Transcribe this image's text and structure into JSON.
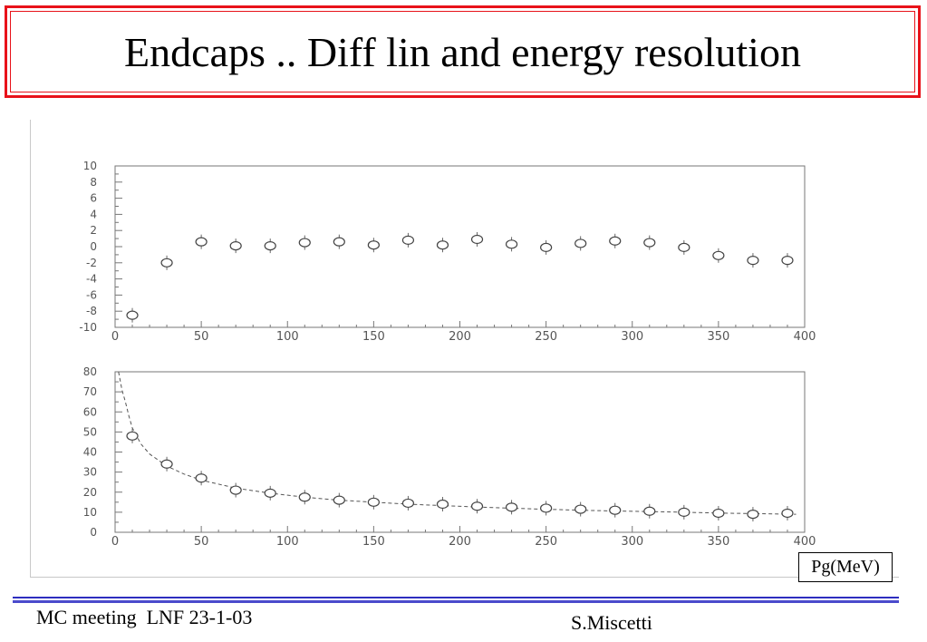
{
  "slide": {
    "title": "Endcaps .. Diff lin and energy resolution",
    "unit_label": "Pg(MeV)",
    "footer_left": "MC meeting  LNF 23-1-03",
    "footer_right": "S.Miscetti",
    "accent_color": "#e8121a",
    "rule_color": "#2d2dbf"
  },
  "chart_data": [
    {
      "type": "scatter",
      "title": "",
      "xlabel": "",
      "ylabel": "",
      "xlim": [
        0,
        400
      ],
      "ylim": [
        -10,
        10
      ],
      "xticks": [
        0,
        50,
        100,
        150,
        200,
        250,
        300,
        350,
        400
      ],
      "xtick_labels": [
        "0",
        "50",
        "100",
        "150",
        "200",
        "250",
        "300",
        "350",
        "400"
      ],
      "yticks": [
        -10,
        -8,
        -6,
        -4,
        -2,
        0,
        2,
        4,
        6,
        8,
        10
      ],
      "ytick_labels": [
        "-10",
        "-8",
        "-6",
        "-4",
        "-2",
        "0",
        "2",
        "4",
        "6",
        "8",
        "10"
      ],
      "grid": false,
      "series": [
        {
          "marker": "open-circle",
          "x": [
            10,
            30,
            50,
            70,
            90,
            110,
            130,
            150,
            170,
            190,
            210,
            230,
            250,
            270,
            290,
            310,
            330,
            350,
            370,
            390
          ],
          "y": [
            -8.5,
            -2.0,
            0.6,
            0.1,
            0.1,
            0.5,
            0.6,
            0.2,
            0.8,
            0.2,
            0.9,
            0.3,
            -0.1,
            0.4,
            0.7,
            0.5,
            -0.1,
            -1.1,
            -1.7,
            -1.7
          ]
        }
      ]
    },
    {
      "type": "scatter",
      "title": "",
      "xlabel": "",
      "ylabel": "",
      "xlim": [
        0,
        400
      ],
      "ylim": [
        0,
        80
      ],
      "xticks": [
        0,
        50,
        100,
        150,
        200,
        250,
        300,
        350,
        400
      ],
      "xtick_labels": [
        "0",
        "50",
        "100",
        "150",
        "200",
        "250",
        "300",
        "350",
        "400"
      ],
      "yticks": [
        0,
        10,
        20,
        30,
        40,
        50,
        60,
        70,
        80
      ],
      "ytick_labels": [
        "0",
        "10",
        "20",
        "30",
        "40",
        "50",
        "60",
        "70",
        "80"
      ],
      "grid": false,
      "series": [
        {
          "marker": "open-circle",
          "x": [
            10,
            30,
            50,
            70,
            90,
            110,
            130,
            150,
            170,
            190,
            210,
            230,
            250,
            270,
            290,
            310,
            330,
            350,
            370,
            390
          ],
          "y": [
            48,
            34,
            27,
            21,
            19.5,
            17.5,
            16,
            15,
            14.5,
            14,
            13,
            12.5,
            12,
            11.5,
            11,
            10.5,
            10,
            9.5,
            9,
            9.5
          ]
        }
      ],
      "fit_curve": {
        "style": "dashed",
        "x": [
          2,
          4,
          6,
          8,
          10,
          15,
          20,
          30,
          40,
          50,
          70,
          90,
          110,
          130,
          150,
          170,
          190,
          210,
          230,
          250,
          270,
          290,
          310,
          330,
          350,
          370,
          395
        ],
        "y": [
          80,
          71,
          65,
          58,
          52,
          44,
          39,
          33,
          29,
          26,
          22,
          19.5,
          17.5,
          16,
          15,
          14,
          13.3,
          12.6,
          12,
          11.5,
          11,
          10.6,
          10.3,
          10,
          9.6,
          9.3,
          9
        ]
      }
    }
  ]
}
